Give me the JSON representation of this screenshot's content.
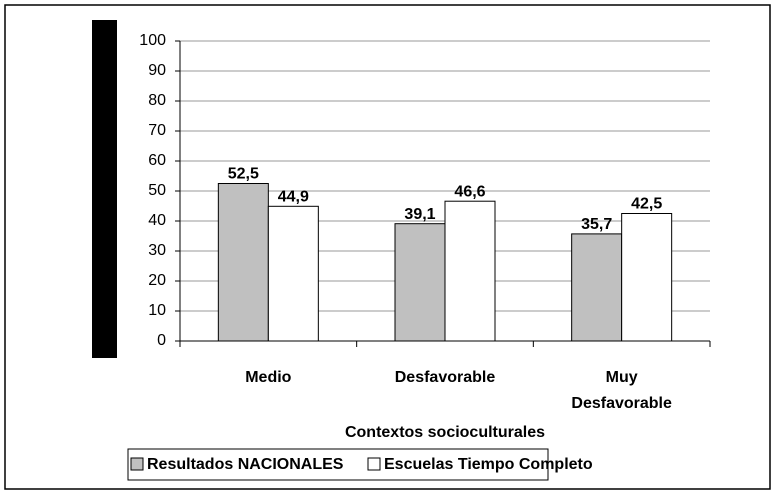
{
  "chart_data": {
    "type": "bar",
    "categories": [
      "Medio",
      "Desfavorable",
      "Muy Desfavorable"
    ],
    "series": [
      {
        "name": "Resultados NACIONALES",
        "color": "#c0c0c0",
        "values": [
          52.5,
          39.1,
          35.7
        ],
        "value_labels": [
          "52,5",
          "39,1",
          "35,7"
        ]
      },
      {
        "name": "Escuelas Tiempo Completo",
        "color": "#ffffff",
        "values": [
          44.9,
          46.6,
          42.5
        ],
        "value_labels": [
          "44,9",
          "46,6",
          "42,5"
        ]
      }
    ],
    "xlabel": "Contextos socioculturales",
    "ylim": [
      0,
      100
    ],
    "yticks": [
      0,
      10,
      20,
      30,
      40,
      50,
      60,
      70,
      80,
      90,
      100
    ],
    "grid": true,
    "legend": "bottom"
  }
}
